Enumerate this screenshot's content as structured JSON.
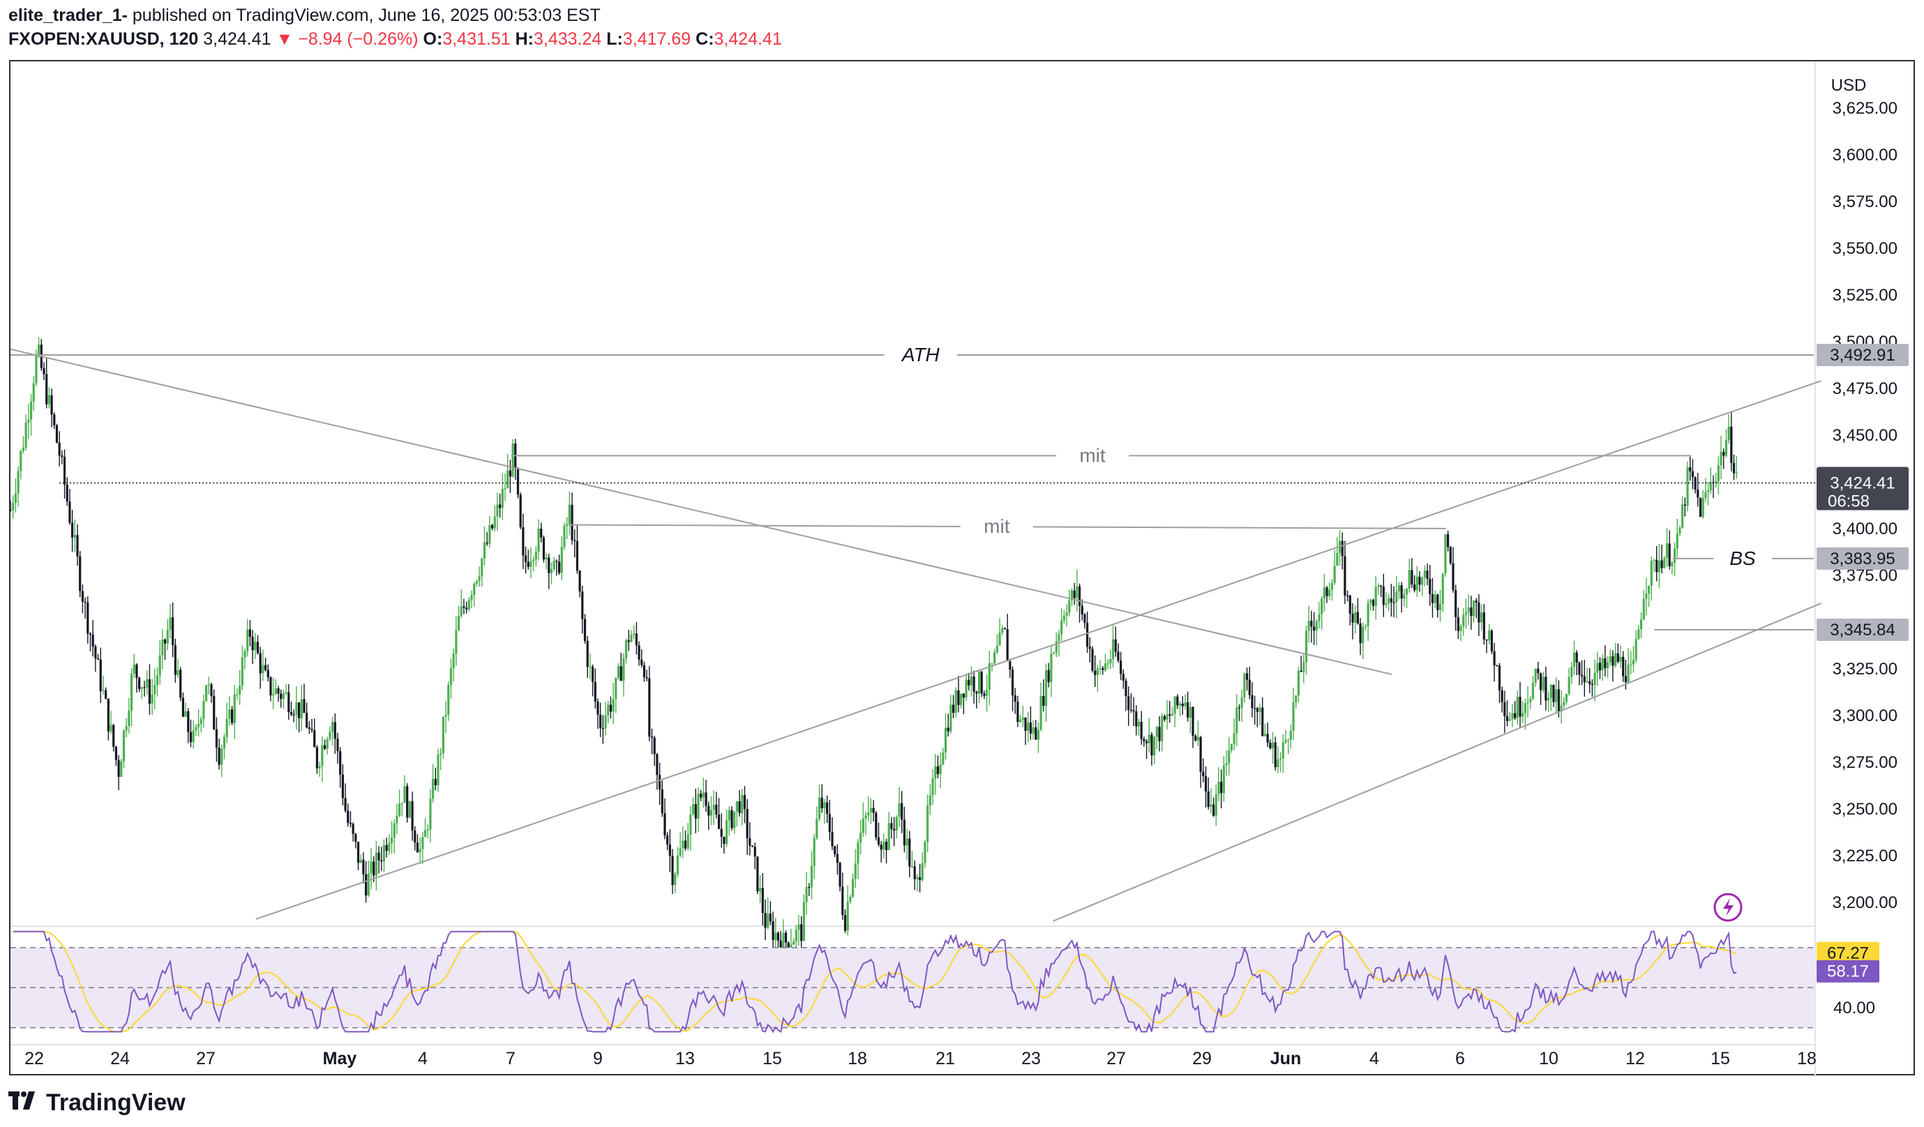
{
  "header": {
    "author": "elite_trader_1-",
    "published_text": " published on TradingView.com, June 16, 2025 00:53:03 EST",
    "symbol": "FXOPEN:XAUUSD, 120",
    "last": "3,424.41",
    "change": "−8.94 (−0.26%)",
    "open_label": "O:",
    "open": "3,431.51",
    "high_label": "H:",
    "high": "3,433.24",
    "low_label": "L:",
    "low": "3,417.69",
    "close_label": "C:",
    "close": "3,424.41"
  },
  "brand": {
    "name": "TradingView"
  },
  "chart_data": [
    {
      "type": "candlestick",
      "currency": "USD",
      "y_ticks": [
        "3,625.00",
        "3,600.00",
        "3,575.00",
        "3,550.00",
        "3,525.00",
        "3,500.00",
        "3,475.00",
        "3,450.00",
        "3,400.00",
        "3,375.00",
        "3,325.00",
        "3,300.00",
        "3,275.00",
        "3,250.00",
        "3,225.00",
        "3,200.00"
      ],
      "ylim": [
        3188,
        3650
      ],
      "x_ticks": [
        "22",
        "24",
        "27",
        "May",
        "4",
        "7",
        "9",
        "13",
        "15",
        "18",
        "21",
        "23",
        "27",
        "29",
        "Jun",
        "4",
        "6",
        "10",
        "12",
        "15",
        "18"
      ],
      "price_badges": [
        {
          "value": "3,492.91",
          "y": 3492.91
        },
        {
          "value": "3,424.41",
          "y": 3424.41,
          "sub": "06:58",
          "current": true
        },
        {
          "value": "3,383.95",
          "y": 3383.95
        },
        {
          "value": "3,345.84",
          "y": 3345.84
        }
      ],
      "path": [
        [
          0,
          3410
        ],
        [
          10,
          3445
        ],
        [
          22,
          3495
        ],
        [
          40,
          3440
        ],
        [
          60,
          3360
        ],
        [
          76,
          3310
        ],
        [
          88,
          3270
        ],
        [
          100,
          3325
        ],
        [
          115,
          3310
        ],
        [
          130,
          3350
        ],
        [
          140,
          3300
        ],
        [
          150,
          3285
        ],
        [
          160,
          3320
        ],
        [
          170,
          3280
        ],
        [
          180,
          3300
        ],
        [
          195,
          3345
        ],
        [
          210,
          3315
        ],
        [
          225,
          3310
        ],
        [
          240,
          3300
        ],
        [
          250,
          3275
        ],
        [
          262,
          3300
        ],
        [
          274,
          3245
        ],
        [
          290,
          3210
        ],
        [
          305,
          3230
        ],
        [
          320,
          3260
        ],
        [
          335,
          3225
        ],
        [
          350,
          3280
        ],
        [
          365,
          3350
        ],
        [
          385,
          3385
        ],
        [
          400,
          3415
        ],
        [
          410,
          3440
        ],
        [
          418,
          3380
        ],
        [
          430,
          3395
        ],
        [
          445,
          3375
        ],
        [
          456,
          3410
        ],
        [
          468,
          3340
        ],
        [
          480,
          3295
        ],
        [
          492,
          3310
        ],
        [
          505,
          3345
        ],
        [
          518,
          3325
        ],
        [
          520,
          3292
        ],
        [
          530,
          3255
        ],
        [
          540,
          3215
        ],
        [
          555,
          3245
        ],
        [
          565,
          3260
        ],
        [
          580,
          3235
        ],
        [
          595,
          3255
        ],
        [
          608,
          3215
        ],
        [
          615,
          3190
        ],
        [
          630,
          3178
        ],
        [
          645,
          3185
        ],
        [
          660,
          3255
        ],
        [
          670,
          3235
        ],
        [
          680,
          3190
        ],
        [
          690,
          3230
        ],
        [
          700,
          3250
        ],
        [
          712,
          3230
        ],
        [
          725,
          3250
        ],
        [
          738,
          3205
        ],
        [
          750,
          3255
        ],
        [
          765,
          3300
        ],
        [
          780,
          3320
        ],
        [
          795,
          3315
        ],
        [
          810,
          3345
        ],
        [
          820,
          3300
        ],
        [
          835,
          3290
        ],
        [
          848,
          3330
        ],
        [
          860,
          3360
        ],
        [
          870,
          3365
        ],
        [
          885,
          3320
        ],
        [
          900,
          3335
        ],
        [
          915,
          3300
        ],
        [
          930,
          3285
        ],
        [
          945,
          3300
        ],
        [
          958,
          3310
        ],
        [
          968,
          3285
        ],
        [
          978,
          3245
        ],
        [
          990,
          3270
        ],
        [
          1005,
          3320
        ],
        [
          1015,
          3305
        ],
        [
          1025,
          3285
        ],
        [
          1035,
          3275
        ],
        [
          1048,
          3310
        ],
        [
          1058,
          3345
        ],
        [
          1070,
          3360
        ],
        [
          1083,
          3390
        ],
        [
          1090,
          3360
        ],
        [
          1100,
          3345
        ],
        [
          1112,
          3365
        ],
        [
          1125,
          3360
        ],
        [
          1140,
          3375
        ],
        [
          1155,
          3370
        ],
        [
          1165,
          3360
        ],
        [
          1170,
          3400
        ],
        [
          1180,
          3345
        ],
        [
          1195,
          3360
        ],
        [
          1210,
          3330
        ],
        [
          1220,
          3300
        ],
        [
          1230,
          3305
        ],
        [
          1245,
          3320
        ],
        [
          1258,
          3310
        ],
        [
          1265,
          3300
        ],
        [
          1275,
          3330
        ],
        [
          1285,
          3320
        ],
        [
          1300,
          3325
        ],
        [
          1310,
          3330
        ],
        [
          1322,
          3320
        ],
        [
          1332,
          3370
        ],
        [
          1345,
          3385
        ],
        [
          1358,
          3388
        ],
        [
          1368,
          3430
        ],
        [
          1378,
          3410
        ],
        [
          1390,
          3430
        ],
        [
          1400,
          3450
        ],
        [
          1409,
          3424
        ]
      ],
      "lines": [
        {
          "label": "ATH",
          "x1": 0,
          "y1": 3492.91,
          "x2": 1470,
          "y2": 3492.91,
          "label_x": 742
        },
        {
          "label": "mit",
          "x1": 408,
          "y1": 3439,
          "x2": 1370,
          "y2": 3439,
          "label_x": 882
        },
        {
          "label": "mit",
          "x1": 455,
          "y1": 3402,
          "x2": 1170,
          "y2": 3400,
          "label_x": 804
        },
        {
          "label": "BS",
          "x1": 1355,
          "y1": 3383.95,
          "x2": 1470,
          "y2": 3383.95,
          "label_x": 1412
        },
        {
          "label": "",
          "x1": 1340,
          "y1": 3345.84,
          "x2": 1470,
          "y2": 3345.84
        },
        {
          "label": "",
          "x1": 0,
          "y1": 3496,
          "x2": 1126,
          "y2": 3322
        },
        {
          "label": "",
          "x1": 200,
          "y1": 3191,
          "x2": 1476,
          "y2": 3479
        },
        {
          "label": "",
          "x1": 850,
          "y1": 3190,
          "x2": 1476,
          "y2": 3360
        }
      ]
    },
    {
      "type": "line",
      "indicator": "RSI",
      "y_ticks": [
        "40.00"
      ],
      "ylim": [
        25,
        80
      ],
      "bands": [
        30,
        50,
        70
      ],
      "badges": [
        {
          "value": "67.27",
          "y": 67.27,
          "role": "ma"
        },
        {
          "value": "58.17",
          "y": 58.17,
          "role": "rsi"
        }
      ],
      "rsi_color": "#7e57c2",
      "ma_color": "#fdd835",
      "band_fill": "#ede7f6"
    }
  ],
  "colors": {
    "up": "#4caf50",
    "down": "#131722",
    "line": "#9e9e9e",
    "badge": "#b2b5be",
    "current_badge": "#434651",
    "axis_text": "#131722"
  },
  "icons": {
    "flash": "lightning-icon"
  }
}
